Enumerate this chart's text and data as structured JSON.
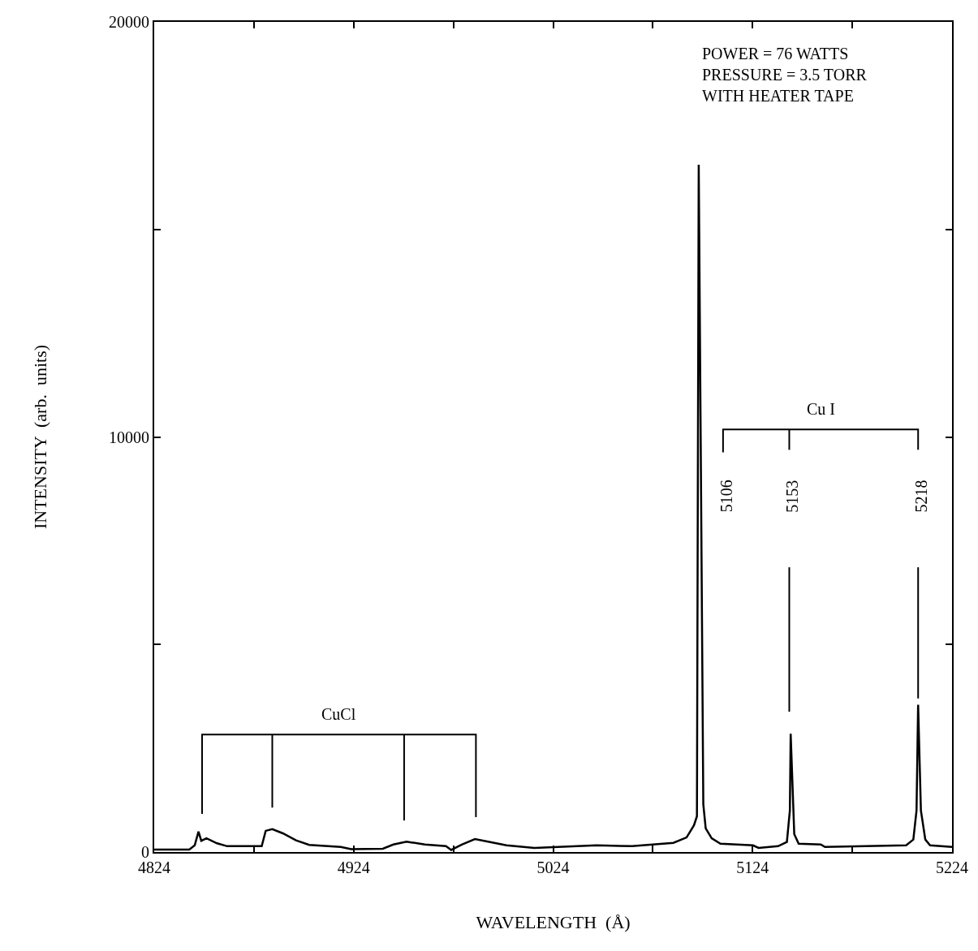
{
  "chart_data": {
    "type": "line",
    "xlabel": "WAVELENGTH  (Å)",
    "ylabel": "INTENSITY  (arb.  units)",
    "xlim": [
      4824,
      5224
    ],
    "ylim": [
      0,
      20000
    ],
    "xticks": [
      4824,
      {
        "value": 4874,
        "label": null
      },
      4924,
      {
        "value": 4974,
        "label": null
      },
      5024,
      {
        "value": 5074,
        "label": null
      },
      5124,
      {
        "value": 5174,
        "label": null
      },
      5224
    ],
    "yticks": [
      0,
      {
        "value": 5000,
        "label": null
      },
      10000,
      {
        "value": 15000,
        "label": null
      },
      20000
    ],
    "marker": "none",
    "line_style": "solid",
    "series": [
      {
        "color": "#000000",
        "x": [
          4824,
          4841.6,
          4844.3,
          4846.2,
          4847.6,
          4850.2,
          4855.5,
          4860.6,
          4877.9,
          4879.9,
          4883.2,
          4888.5,
          4895.1,
          4901.7,
          4917.5,
          4922.8,
          4938.6,
          4943.9,
          4950.5,
          4959.7,
          4970.3,
          4972.9,
          4978.2,
          4984.8,
          4991.4,
          5000.6,
          5014.6,
          5045.8,
          5063.6,
          5084.3,
          5090.9,
          5094.6,
          5096.1,
          5097,
          5099.3,
          5100.5,
          5103.5,
          5107.9,
          5124.2,
          5127,
          5136.8,
          5141.2,
          5142.7,
          5143.1,
          5144.9,
          5147.1,
          5158.2,
          5160.3,
          5201,
          5204.6,
          5206.2,
          5207,
          5208.4,
          5210.6,
          5213,
          5224
        ],
        "values": [
          60,
          60,
          160,
          490,
          270,
          330,
          210,
          140,
          140,
          510,
          550,
          450,
          280,
          170,
          120,
          70,
          80,
          180,
          250,
          180,
          140,
          50,
          180,
          310,
          250,
          160,
          100,
          160,
          140,
          220,
          350,
          640,
          860,
          16560,
          1150,
          570,
          330,
          200,
          160,
          100,
          140,
          240,
          1000,
          2850,
          430,
          200,
          180,
          120,
          160,
          300,
          1000,
          3550,
          1000,
          300,
          160,
          120
        ]
      },
      {
        "color": "#000000",
        "x": [
          4848,
          4848,
          4985.3,
          4985.3,
          null,
          4883.2,
          4883.2,
          null,
          4949.3,
          4949.3
        ],
        "values": [
          920,
          2830,
          2830,
          840,
          null,
          1070,
          2830,
          null,
          760,
          2830
        ]
      },
      {
        "color": "#000000",
        "x": [
          5109.2,
          5109.2,
          5207,
          5207,
          null,
          5142.4,
          5142.4
        ],
        "values": [
          9630,
          10180,
          10180,
          9690,
          null,
          9690,
          10180
        ]
      },
      {
        "color": "#000000",
        "x": [
          5142.4,
          5142.4
        ],
        "values": [
          3380,
          6860
        ]
      },
      {
        "color": "#000000",
        "x": [
          5207,
          5207
        ],
        "values": [
          3700,
          6860
        ]
      }
    ],
    "annotations": [
      "CuCl",
      "Cu I",
      "5106",
      "5153",
      "5218",
      "POWER = 76 WATTS\nPRESSURE = 3.5 TORR\nWITH HEATER TAPE"
    ]
  }
}
